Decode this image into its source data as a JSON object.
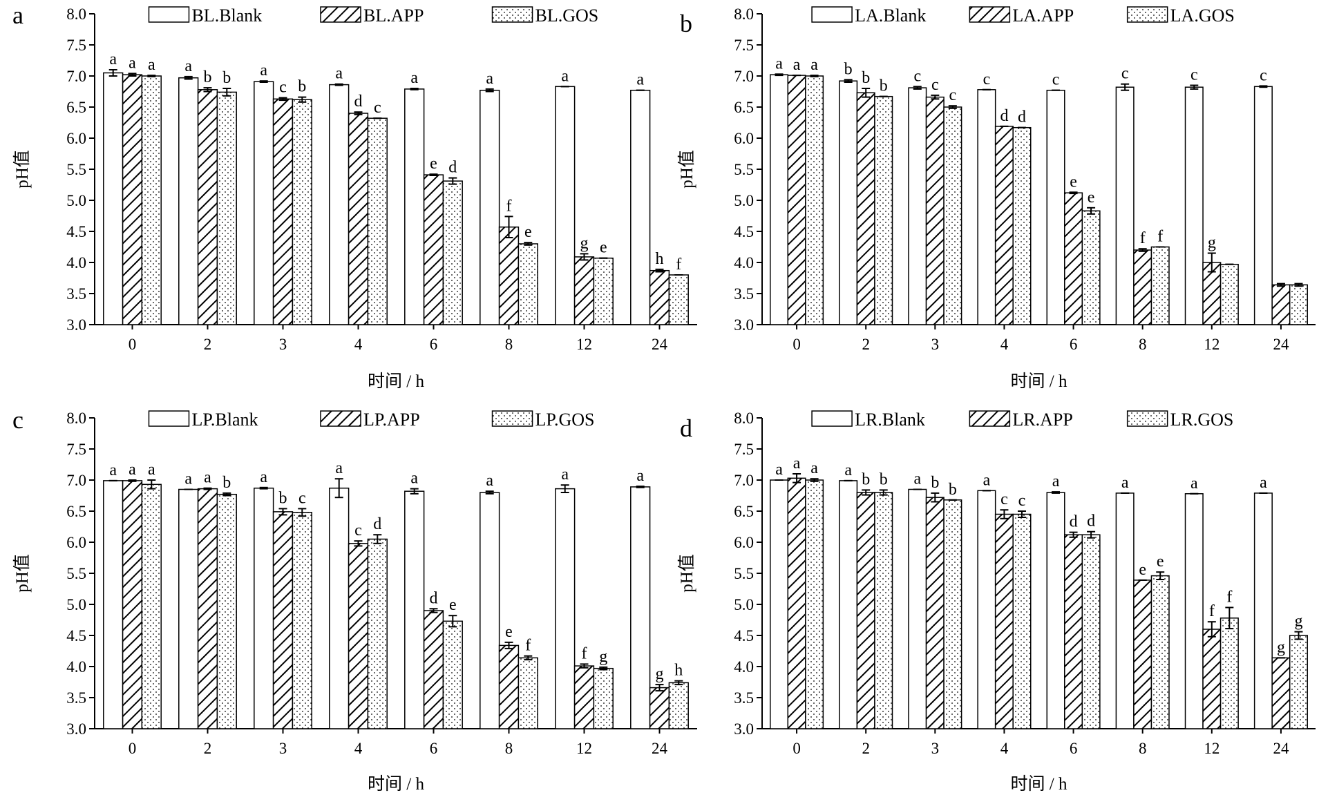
{
  "chart_data": [
    {
      "type": "bar",
      "panel_label": "a",
      "categories": [
        "0",
        "2",
        "3",
        "4",
        "6",
        "8",
        "12",
        "24"
      ],
      "xlabel": "时间 / h",
      "ylabel": "pH值",
      "ylim": [
        3.0,
        8.0
      ],
      "yticks": [
        "3.0",
        "3.5",
        "4.0",
        "4.5",
        "5.0",
        "5.5",
        "6.0",
        "6.5",
        "7.0",
        "7.5",
        "8.0"
      ],
      "legend_position": "top",
      "series": [
        {
          "name": "BL.Blank",
          "pattern": "blank",
          "values": [
            7.05,
            6.97,
            6.91,
            6.86,
            6.79,
            6.77,
            6.83,
            6.77
          ],
          "errors": [
            0.05,
            0.02,
            0.01,
            0.01,
            0.01,
            0.02,
            0.0,
            0.0
          ],
          "labels": [
            "a",
            "a",
            "a",
            "a",
            "a",
            "a",
            "a",
            "a"
          ]
        },
        {
          "name": "BL.APP",
          "pattern": "hatch",
          "values": [
            7.02,
            6.78,
            6.63,
            6.4,
            5.41,
            4.57,
            4.09,
            3.87
          ],
          "errors": [
            0.02,
            0.03,
            0.02,
            0.02,
            0.01,
            0.17,
            0.05,
            0.02
          ],
          "labels": [
            "a",
            "b",
            "c",
            "d",
            "e",
            "f",
            "g",
            "h"
          ]
        },
        {
          "name": "BL.GOS",
          "pattern": "dots",
          "values": [
            7.0,
            6.74,
            6.62,
            6.32,
            5.31,
            4.3,
            4.07,
            3.8
          ],
          "errors": [
            0.01,
            0.06,
            0.04,
            0.0,
            0.05,
            0.02,
            0.0,
            0.0
          ],
          "labels": [
            "a",
            "b",
            "b",
            "c",
            "d",
            "e",
            "",
            ""
          ]
        }
      ],
      "extra_labels": [
        {
          "category": "12",
          "text": "e"
        },
        {
          "category": "24",
          "text": "f"
        }
      ]
    },
    {
      "type": "bar",
      "panel_label": "b",
      "categories": [
        "0",
        "2",
        "3",
        "4",
        "6",
        "8",
        "12",
        "24"
      ],
      "xlabel": "时间 / h",
      "ylabel": "pH值",
      "ylim": [
        3.0,
        8.0
      ],
      "yticks": [
        "3.0",
        "3.5",
        "4.0",
        "4.5",
        "5.0",
        "5.5",
        "6.0",
        "6.5",
        "7.0",
        "7.5",
        "8.0"
      ],
      "legend_position": "top",
      "series": [
        {
          "name": "LA.Blank",
          "pattern": "blank",
          "values": [
            7.02,
            6.92,
            6.81,
            6.78,
            6.77,
            6.82,
            6.82,
            6.83
          ],
          "errors": [
            0.01,
            0.02,
            0.02,
            0.0,
            0.0,
            0.05,
            0.03,
            0.01
          ],
          "labels": [
            "a",
            "b",
            "c",
            "c",
            "c",
            "c",
            "c",
            "c"
          ]
        },
        {
          "name": "LA.APP",
          "pattern": "hatch",
          "values": [
            7.01,
            6.73,
            6.66,
            6.19,
            5.12,
            4.2,
            4.0,
            3.64
          ],
          "errors": [
            0.0,
            0.07,
            0.03,
            0.0,
            0.01,
            0.02,
            0.15,
            0.02
          ],
          "labels": [
            "a",
            "b",
            "c",
            "d",
            "e",
            "f",
            "g",
            ""
          ]
        },
        {
          "name": "LA.GOS",
          "pattern": "dots",
          "values": [
            7.0,
            6.67,
            6.5,
            6.17,
            4.83,
            4.25,
            3.97,
            3.64
          ],
          "errors": [
            0.01,
            0.0,
            0.02,
            0.0,
            0.05,
            0.0,
            0.0,
            0.02
          ],
          "labels": [
            "a",
            "b",
            "c",
            "d",
            "e",
            "f",
            "",
            ""
          ]
        }
      ],
      "extra_labels": []
    },
    {
      "type": "bar",
      "panel_label": "c",
      "categories": [
        "0",
        "2",
        "3",
        "4",
        "6",
        "8",
        "12",
        "24"
      ],
      "xlabel": "时间 / h",
      "ylabel": "pH值",
      "ylim": [
        3.0,
        8.0
      ],
      "yticks": [
        "3.0",
        "3.5",
        "4.0",
        "4.5",
        "5.0",
        "5.5",
        "6.0",
        "6.5",
        "7.0",
        "7.5",
        "8.0"
      ],
      "legend_position": "top",
      "series": [
        {
          "name": "LP.Blank",
          "pattern": "blank",
          "values": [
            6.99,
            6.85,
            6.87,
            6.87,
            6.82,
            6.8,
            6.86,
            6.89
          ],
          "errors": [
            0.0,
            0.0,
            0.01,
            0.15,
            0.04,
            0.02,
            0.06,
            0.01
          ],
          "labels": [
            "a",
            "a",
            "a",
            "a",
            "a",
            "a",
            "a",
            "a"
          ]
        },
        {
          "name": "LP.APP",
          "pattern": "hatch",
          "values": [
            6.99,
            6.86,
            6.49,
            5.98,
            4.9,
            4.34,
            4.01,
            3.66
          ],
          "errors": [
            0.01,
            0.01,
            0.05,
            0.04,
            0.03,
            0.05,
            0.03,
            0.05
          ],
          "labels": [
            "a",
            "a",
            "b",
            "c",
            "d",
            "e",
            "f",
            "g"
          ]
        },
        {
          "name": "LP.GOS",
          "pattern": "dots",
          "values": [
            6.93,
            6.77,
            6.48,
            6.05,
            4.73,
            4.14,
            3.97,
            3.74
          ],
          "errors": [
            0.07,
            0.02,
            0.06,
            0.07,
            0.09,
            0.03,
            0.02,
            0.03
          ],
          "labels": [
            "a",
            "b",
            "c",
            "d",
            "e",
            "f",
            "g",
            "h"
          ]
        }
      ],
      "extra_labels": []
    },
    {
      "type": "bar",
      "panel_label": "d",
      "categories": [
        "0",
        "2",
        "3",
        "4",
        "6",
        "8",
        "12",
        "24"
      ],
      "xlabel": "时间 / h",
      "ylabel": "pH值",
      "ylim": [
        3.0,
        8.0
      ],
      "yticks": [
        "3.0",
        "3.5",
        "4.0",
        "4.5",
        "5.0",
        "5.5",
        "6.0",
        "6.5",
        "7.0",
        "7.5",
        "8.0"
      ],
      "legend_position": "top",
      "series": [
        {
          "name": "LR.Blank",
          "pattern": "blank",
          "values": [
            7.0,
            6.99,
            6.85,
            6.83,
            6.8,
            6.79,
            6.78,
            6.79
          ],
          "errors": [
            0.0,
            0.0,
            0.0,
            0.0,
            0.01,
            0.0,
            0.0,
            0.0
          ],
          "labels": [
            "a",
            "a",
            "a",
            "a",
            "a",
            "a",
            "a",
            "a"
          ]
        },
        {
          "name": "LR.APP",
          "pattern": "hatch",
          "values": [
            7.03,
            6.8,
            6.72,
            6.45,
            6.12,
            5.39,
            4.6,
            4.14
          ],
          "errors": [
            0.07,
            0.04,
            0.07,
            0.07,
            0.04,
            0.0,
            0.12,
            0.0
          ],
          "labels": [
            "a",
            "b",
            "b",
            "c",
            "d",
            "e",
            "f",
            "g"
          ]
        },
        {
          "name": "LR.GOS",
          "pattern": "dots",
          "values": [
            7.0,
            6.8,
            6.68,
            6.45,
            6.12,
            5.46,
            4.78,
            4.5
          ],
          "errors": [
            0.02,
            0.04,
            0.0,
            0.05,
            0.05,
            0.06,
            0.17,
            0.06
          ],
          "labels": [
            "a",
            "b",
            "b",
            "c",
            "d",
            "e",
            "f",
            "g"
          ]
        }
      ],
      "extra_labels": []
    }
  ]
}
